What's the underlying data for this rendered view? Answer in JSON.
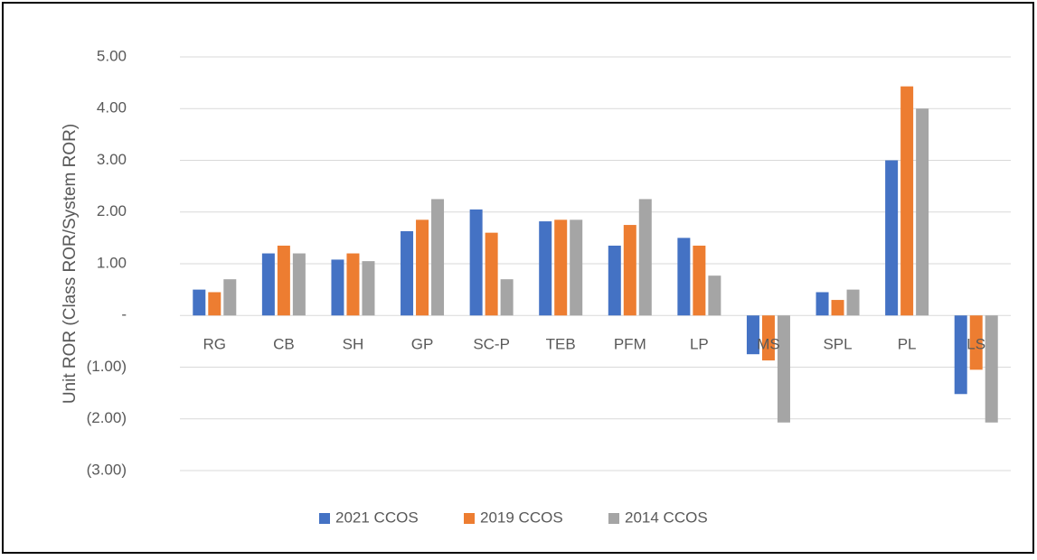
{
  "chart_data": {
    "type": "bar",
    "y_label": "Unit ROR (Class ROR/System ROR)",
    "categories": [
      "RG",
      "CB",
      "SH",
      "GP",
      "SC-P",
      "TEB",
      "PFM",
      "LP",
      "MS",
      "SPL",
      "PL",
      "LS"
    ],
    "series": [
      {
        "name": "2021 CCOS",
        "color": "#4472c4",
        "values": [
          0.5,
          1.2,
          1.08,
          1.63,
          2.05,
          1.82,
          1.35,
          1.5,
          -0.75,
          0.45,
          3.0,
          -1.52
        ]
      },
      {
        "name": "2019 CCOS",
        "color": "#ed7d31",
        "values": [
          0.45,
          1.35,
          1.2,
          1.85,
          1.6,
          1.85,
          1.75,
          1.35,
          -0.87,
          0.3,
          4.43,
          -1.05
        ]
      },
      {
        "name": "2014 CCOS",
        "color": "#a5a5a5",
        "values": [
          0.7,
          1.2,
          1.05,
          2.25,
          0.7,
          1.85,
          2.25,
          0.77,
          -2.07,
          0.5,
          4.0,
          -2.07
        ]
      }
    ],
    "ylim": [
      -3,
      5
    ],
    "yticks": [
      {
        "value": 5,
        "label": "5.00"
      },
      {
        "value": 4,
        "label": "4.00"
      },
      {
        "value": 3,
        "label": "3.00"
      },
      {
        "value": 2,
        "label": "2.00"
      },
      {
        "value": 1,
        "label": "1.00"
      },
      {
        "value": 0,
        "label": "-"
      },
      {
        "value": -1,
        "label": "(1.00)"
      },
      {
        "value": -2,
        "label": "(2.00)"
      },
      {
        "value": -3,
        "label": "(3.00)"
      }
    ],
    "grid": true,
    "legend": "bottom"
  }
}
